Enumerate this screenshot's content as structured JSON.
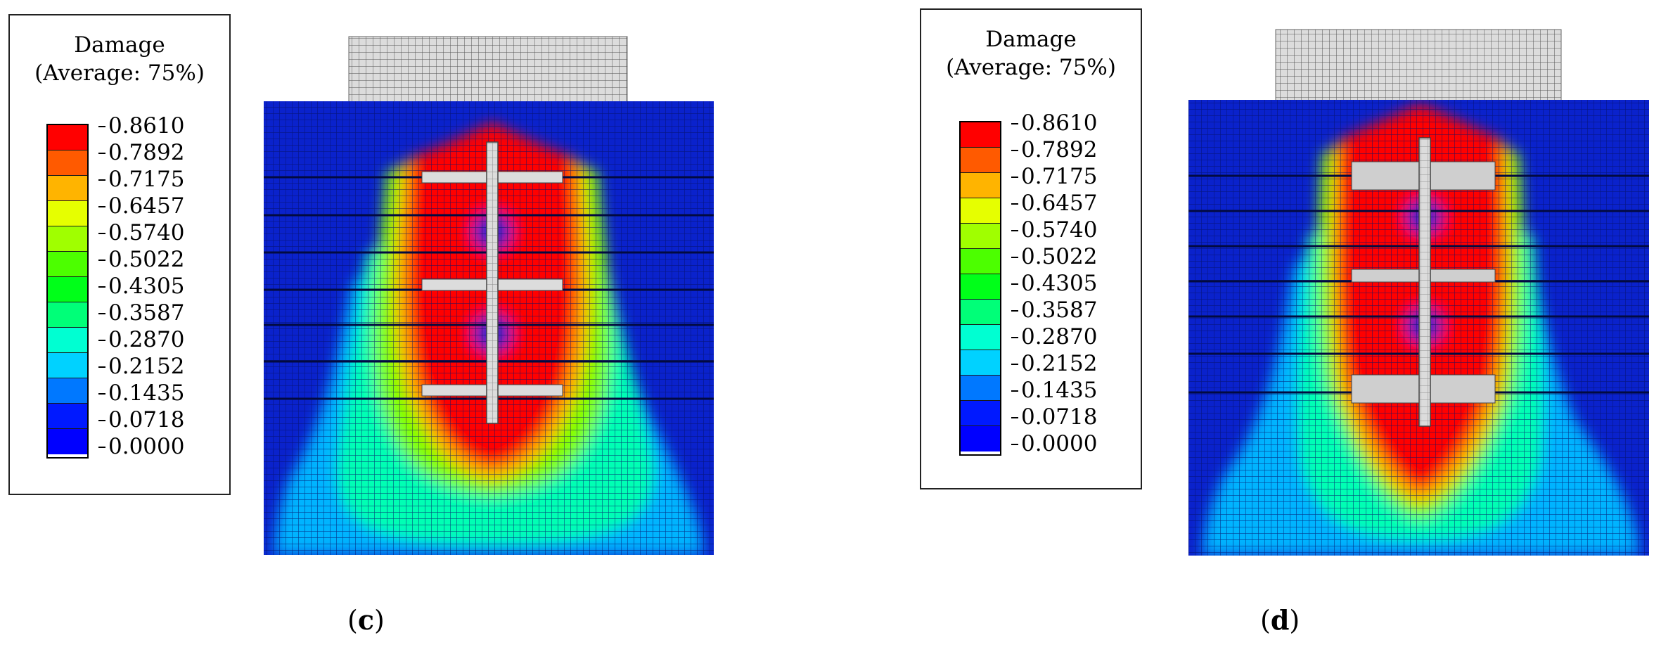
{
  "panels": [
    {
      "id": "c",
      "legend": {
        "title": "Damage",
        "subtitle": "(Average: 75%)",
        "levels": [
          "0.8610",
          "0.7892",
          "0.7175",
          "0.6457",
          "0.5740",
          "0.5022",
          "0.4305",
          "0.3587",
          "0.2870",
          "0.2152",
          "0.1435",
          "0.0718",
          "0.0000"
        ]
      },
      "caption": "c"
    },
    {
      "id": "d",
      "legend": {
        "title": "Damage",
        "subtitle": "(Average: 75%)",
        "levels": [
          "0.8610",
          "0.7892",
          "0.7175",
          "0.6457",
          "0.5740",
          "0.5022",
          "0.4305",
          "0.3587",
          "0.2870",
          "0.2152",
          "0.1435",
          "0.0718",
          "0.0000"
        ]
      },
      "caption": "d"
    }
  ],
  "colors": {
    "bands": [
      "#ff0000",
      "#ff5a00",
      "#ffb400",
      "#e6ff00",
      "#a0ff00",
      "#4cff00",
      "#00ff19",
      "#00ff78",
      "#00ffd2",
      "#00d2ff",
      "#0078ff",
      "#0019ff",
      "#0000ff"
    ],
    "mesh_bg": "#0a22cc",
    "mesh_grid": "#041068",
    "steel": "#dcdcdc"
  }
}
